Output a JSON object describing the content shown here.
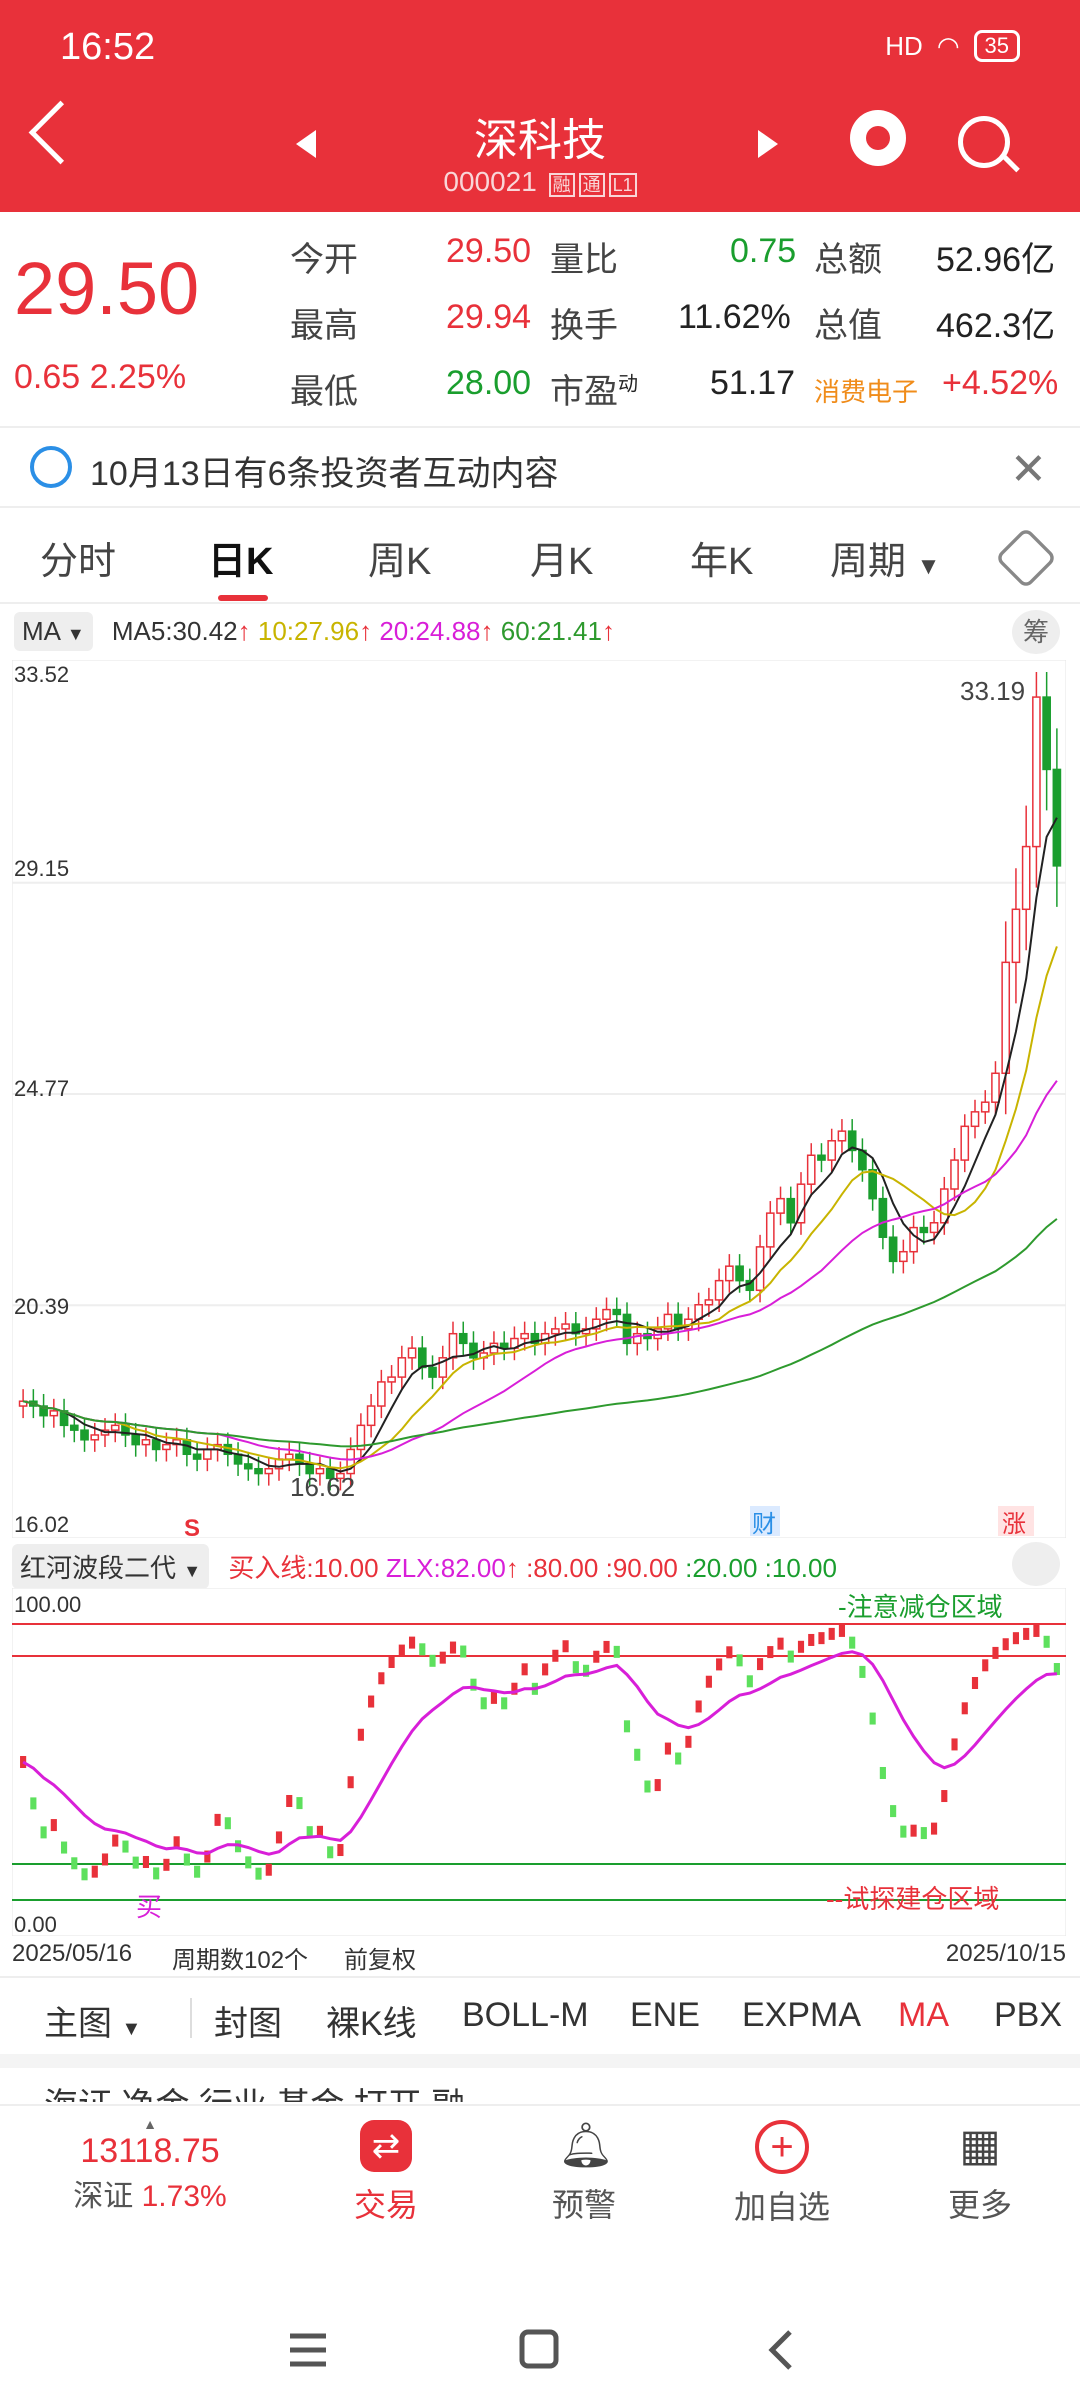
{
  "status_bar": {
    "time": "16:52",
    "signal": "HD",
    "battery": "35"
  },
  "header": {
    "stock_name": "深科技",
    "stock_code": "000021",
    "tag1": "融",
    "tag2": "通",
    "tag3": "L1"
  },
  "quote": {
    "price": "29.50",
    "change": "0.65",
    "change_pct": "2.25%",
    "rows": [
      [
        {
          "label": "今开",
          "value": "29.50"
        },
        {
          "label": "量比",
          "value": "0.75"
        },
        {
          "label": "总额",
          "value": "52.96亿"
        }
      ],
      [
        {
          "label": "最高",
          "value": "29.94"
        },
        {
          "label": "换手",
          "value": "11.62%"
        },
        {
          "label": "总值",
          "value": "462.3亿"
        }
      ],
      [
        {
          "label": "最低",
          "value": "28.00"
        },
        {
          "label": "市盈",
          "sup": "动",
          "value": "51.17"
        },
        {
          "label": "消费电子",
          "value": "+4.52%"
        }
      ]
    ]
  },
  "notice": {
    "text": "10月13日有6条投资者互动内容"
  },
  "tabs": [
    "分时",
    "日K",
    "周K",
    "月K",
    "年K",
    "周期"
  ],
  "ma_bar": {
    "selector": "MA",
    "ma5": "MA5:30.42",
    "ma10": "10:27.96",
    "ma20": "20:24.88",
    "ma60": "60:21.41",
    "calc_icon": "筹"
  },
  "kchart": {
    "y_labels": [
      "33.52",
      "29.15",
      "24.77",
      "20.39",
      "16.02"
    ],
    "high_label": "33.19",
    "low_label": "16.62",
    "marker_s": "S",
    "marker_cai": "财",
    "marker_zhang": "涨"
  },
  "indicator": {
    "name": "红河波段二代",
    "params": [
      {
        "text": "买入线:10.00",
        "color": "#e8313a"
      },
      {
        "text": "ZLX:82.00",
        "color": "#d81fd8"
      },
      {
        "text": ":80.00",
        "color": "#e8313a"
      },
      {
        "text": ":90.00",
        "color": "#e8313a"
      },
      {
        "text": ":20.00",
        "color": "#1a9e2e"
      },
      {
        "text": ":10.00",
        "color": "#1a9e2e"
      }
    ],
    "top_label": "100.00",
    "bottom_label": "0.00",
    "zone_top": "-注意减仓区域",
    "zone_bottom": "--试探建仓区域",
    "buy_marker": "买"
  },
  "chart_data": {
    "type": "candlestick",
    "x_range": [
      "2025/05/16",
      "2025/10/15"
    ],
    "period_count": "周期数102个",
    "adjust": "前复权",
    "ylim": [
      16.02,
      33.52
    ],
    "high": 33.19,
    "low": 16.62,
    "close_approx": [
      18.4,
      18.3,
      18.1,
      18.2,
      17.9,
      17.8,
      17.6,
      17.7,
      17.8,
      17.9,
      17.7,
      17.5,
      17.6,
      17.4,
      17.5,
      17.6,
      17.3,
      17.2,
      17.4,
      17.5,
      17.3,
      17.1,
      17.0,
      16.9,
      17.0,
      17.2,
      17.3,
      17.1,
      16.9,
      17.0,
      16.8,
      16.9,
      17.4,
      17.9,
      18.3,
      18.8,
      18.9,
      19.3,
      19.5,
      19.1,
      18.9,
      19.3,
      19.8,
      19.6,
      19.3,
      19.4,
      19.6,
      19.5,
      19.7,
      19.8,
      19.6,
      19.8,
      19.9,
      20.0,
      19.8,
      19.9,
      20.1,
      20.3,
      20.2,
      19.6,
      19.8,
      19.7,
      19.9,
      20.2,
      19.9,
      20.1,
      20.4,
      20.5,
      20.9,
      21.2,
      20.9,
      20.7,
      21.6,
      22.3,
      22.6,
      22.1,
      22.9,
      23.5,
      23.4,
      23.8,
      24.0,
      23.6,
      23.2,
      22.6,
      21.8,
      21.3,
      21.5,
      22.0,
      21.9,
      22.1,
      22.8,
      23.4,
      24.1,
      24.4,
      24.6,
      25.2,
      27.5,
      28.6,
      29.9,
      33.0,
      31.5,
      29.5
    ],
    "ma_lines": [
      {
        "name": "MA5",
        "value": 30.42,
        "color": "#222222"
      },
      {
        "name": "MA10",
        "value": 27.96,
        "color": "#c8b400"
      },
      {
        "name": "MA20",
        "value": 24.88,
        "color": "#d81fd8"
      },
      {
        "name": "MA60",
        "value": 21.41,
        "color": "#2e9a2e"
      }
    ]
  },
  "studies_bar": {
    "main": "主图",
    "items": [
      "封图",
      "裸K线",
      "BOLL-M",
      "ENE",
      "EXPMA",
      "MA",
      "PBX"
    ],
    "active": "MA"
  },
  "cutoff_row": "海证    净金           行业      基金      打开     融",
  "bottom_nav": {
    "index_value": "13118.75",
    "index_name": "深证",
    "index_pct": "1.73%",
    "trade": "交易",
    "alert": "预警",
    "add": "加自选",
    "more": "更多"
  }
}
